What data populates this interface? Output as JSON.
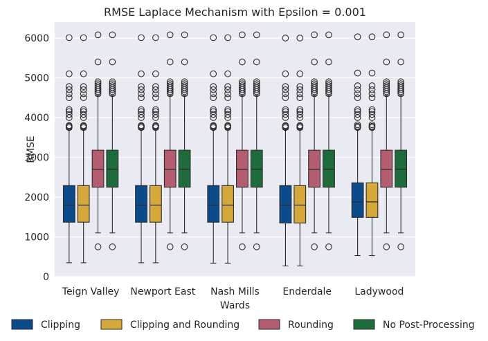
{
  "chart_data": {
    "type": "box",
    "title": "RMSE Laplace Mechanism with Epsilon = 0.001",
    "xlabel": "Wards",
    "ylabel": "RMSE",
    "ylim": [
      0,
      6400
    ],
    "yticks": [
      0,
      1000,
      2000,
      3000,
      4000,
      5000,
      6000
    ],
    "grid": true,
    "legend_position": "bottom",
    "categories": [
      "Teign Valley",
      "Newport East",
      "Nash Mills",
      "Enderdale",
      "Ladywood"
    ],
    "series": [
      {
        "name": "Clipping",
        "color": "#0b4a8b",
        "boxes": [
          {
            "whislo": 350,
            "q1": 1370,
            "med": 1800,
            "q3": 2290,
            "whishi": 3700,
            "fliers": [
              3750,
              3780,
              3800,
              4000,
              4080,
              4150,
              4200,
              4500,
              4600,
              4700,
              4780,
              5100,
              6010
            ]
          },
          {
            "whislo": 350,
            "q1": 1370,
            "med": 1800,
            "q3": 2290,
            "whishi": 3700,
            "fliers": [
              3750,
              3780,
              3800,
              4000,
              4080,
              4150,
              4200,
              4500,
              4600,
              4700,
              4780,
              5100,
              6010
            ]
          },
          {
            "whislo": 340,
            "q1": 1370,
            "med": 1800,
            "q3": 2290,
            "whishi": 3700,
            "fliers": [
              3750,
              3780,
              3800,
              4000,
              4080,
              4150,
              4200,
              4500,
              4600,
              4700,
              4780,
              5100,
              6010
            ]
          },
          {
            "whislo": 270,
            "q1": 1350,
            "med": 1800,
            "q3": 2290,
            "whishi": 3700,
            "fliers": [
              3750,
              3780,
              3800,
              4000,
              4080,
              4150,
              4200,
              4500,
              4600,
              4700,
              4780,
              5100,
              6000
            ]
          },
          {
            "whislo": 530,
            "q1": 1490,
            "med": 1880,
            "q3": 2360,
            "whishi": 3700,
            "fliers": [
              3750,
              3780,
              3820,
              4000,
              4080,
              4150,
              4200,
              4500,
              4600,
              4700,
              4800,
              5120,
              6030
            ]
          }
        ]
      },
      {
        "name": "Clipping and Rounding",
        "color": "#d4a83a",
        "boxes": [
          {
            "whislo": 350,
            "q1": 1370,
            "med": 1800,
            "q3": 2290,
            "whishi": 3700,
            "fliers": [
              3750,
              3780,
              3800,
              4000,
              4080,
              4150,
              4200,
              4500,
              4600,
              4700,
              4780,
              5100,
              6010
            ]
          },
          {
            "whislo": 350,
            "q1": 1370,
            "med": 1800,
            "q3": 2290,
            "whishi": 3700,
            "fliers": [
              3750,
              3780,
              3800,
              4000,
              4080,
              4150,
              4200,
              4500,
              4600,
              4700,
              4780,
              5100,
              6010
            ]
          },
          {
            "whislo": 340,
            "q1": 1370,
            "med": 1800,
            "q3": 2290,
            "whishi": 3700,
            "fliers": [
              3750,
              3780,
              3800,
              4000,
              4080,
              4150,
              4200,
              4500,
              4600,
              4700,
              4780,
              5100,
              6010
            ]
          },
          {
            "whislo": 270,
            "q1": 1350,
            "med": 1800,
            "q3": 2290,
            "whishi": 3700,
            "fliers": [
              3750,
              3780,
              3800,
              4000,
              4080,
              4150,
              4200,
              4500,
              4600,
              4700,
              4780,
              5100,
              6000
            ]
          },
          {
            "whislo": 530,
            "q1": 1490,
            "med": 1880,
            "q3": 2360,
            "whishi": 3700,
            "fliers": [
              3750,
              3780,
              3820,
              4000,
              4080,
              4150,
              4200,
              4500,
              4600,
              4700,
              4800,
              5120,
              6030
            ]
          }
        ]
      },
      {
        "name": "Rounding",
        "color": "#b45d70",
        "boxes": [
          {
            "whislo": 1100,
            "q1": 2250,
            "med": 2700,
            "q3": 3180,
            "whishi": 4550,
            "fliers": [
              750,
              4600,
              4650,
              4700,
              4750,
              4800,
              4850,
              4900,
              5400,
              6080
            ]
          },
          {
            "whislo": 1100,
            "q1": 2250,
            "med": 2700,
            "q3": 3180,
            "whishi": 4550,
            "fliers": [
              750,
              4600,
              4650,
              4700,
              4750,
              4800,
              4850,
              4900,
              5400,
              6080
            ]
          },
          {
            "whislo": 1100,
            "q1": 2250,
            "med": 2700,
            "q3": 3180,
            "whishi": 4550,
            "fliers": [
              750,
              4600,
              4650,
              4700,
              4750,
              4800,
              4850,
              4900,
              5400,
              6080
            ]
          },
          {
            "whislo": 1100,
            "q1": 2250,
            "med": 2700,
            "q3": 3180,
            "whishi": 4550,
            "fliers": [
              750,
              4600,
              4650,
              4700,
              4750,
              4800,
              4850,
              4900,
              5400,
              6080
            ]
          },
          {
            "whislo": 1100,
            "q1": 2250,
            "med": 2700,
            "q3": 3180,
            "whishi": 4550,
            "fliers": [
              750,
              4600,
              4650,
              4700,
              4750,
              4800,
              4850,
              4900,
              5400,
              6080
            ]
          }
        ]
      },
      {
        "name": "No Post-Processing",
        "color": "#1e6b3c",
        "boxes": [
          {
            "whislo": 1100,
            "q1": 2250,
            "med": 2700,
            "q3": 3180,
            "whishi": 4550,
            "fliers": [
              750,
              4600,
              4650,
              4700,
              4750,
              4800,
              4850,
              4900,
              5400,
              6080
            ]
          },
          {
            "whislo": 1100,
            "q1": 2250,
            "med": 2700,
            "q3": 3180,
            "whishi": 4550,
            "fliers": [
              750,
              4600,
              4650,
              4700,
              4750,
              4800,
              4850,
              4900,
              5400,
              6080
            ]
          },
          {
            "whislo": 1100,
            "q1": 2250,
            "med": 2700,
            "q3": 3180,
            "whishi": 4550,
            "fliers": [
              750,
              4600,
              4650,
              4700,
              4750,
              4800,
              4850,
              4900,
              5400,
              6080
            ]
          },
          {
            "whislo": 1100,
            "q1": 2250,
            "med": 2700,
            "q3": 3180,
            "whishi": 4550,
            "fliers": [
              750,
              4600,
              4650,
              4700,
              4750,
              4800,
              4850,
              4900,
              5400,
              6080
            ]
          },
          {
            "whislo": 1100,
            "q1": 2250,
            "med": 2700,
            "q3": 3180,
            "whishi": 4550,
            "fliers": [
              750,
              4600,
              4650,
              4700,
              4750,
              4800,
              4850,
              4900,
              5400,
              6080
            ]
          }
        ]
      }
    ]
  }
}
